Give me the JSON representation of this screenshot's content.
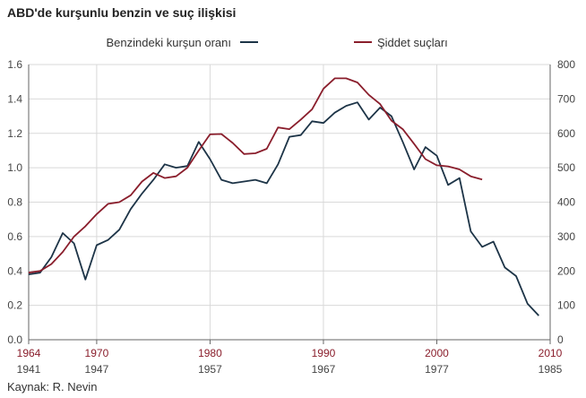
{
  "title": "ABD'de kurşunlu benzin ve suç ilişkisi",
  "source": "Kaynak: R. Nevin",
  "colors": {
    "lead": "#1d3447",
    "crime": "#8a1e2c",
    "grid": "#d9d9d9",
    "axis": "#666666"
  },
  "chart_data": {
    "type": "line",
    "legend_position": "top",
    "grid": true,
    "x_axes": {
      "crime_years": {
        "range": [
          1964,
          2010
        ],
        "ticks": [
          "1964",
          "1970",
          "1980",
          "1990",
          "2000",
          "2010"
        ]
      },
      "lead_years": {
        "range": [
          1941,
          1985
        ],
        "ticks": [
          "1941",
          "1947",
          "1957",
          "1967",
          "1977",
          "1985"
        ]
      }
    },
    "y_left": {
      "range": [
        0,
        1.6
      ],
      "ticks": [
        "0.0",
        "0.2",
        "0.4",
        "0.6",
        "0.8",
        "1.0",
        "1.2",
        "1.4",
        "1.6"
      ]
    },
    "y_right": {
      "range": [
        0,
        800
      ],
      "ticks": [
        "0",
        "100",
        "200",
        "300",
        "400",
        "500",
        "600",
        "700",
        "800"
      ]
    },
    "series": [
      {
        "name": "Benzindeki kurşun oranı",
        "axis": "left",
        "x": [
          1964,
          1965,
          1966,
          1967,
          1968,
          1969,
          1970,
          1971,
          1972,
          1973,
          1974,
          1975,
          1976,
          1977,
          1978,
          1979,
          1980,
          1981,
          1982,
          1983,
          1984,
          1985,
          1986,
          1987,
          1988,
          1989,
          1990,
          1991,
          1992,
          1993,
          1994,
          1995,
          1996,
          1997,
          1998,
          1999,
          2000,
          2001,
          2002,
          2003,
          2004,
          2005,
          2006,
          2007,
          2008,
          2009,
          2010
        ],
        "values": [
          0.38,
          0.39,
          0.48,
          0.62,
          0.56,
          0.35,
          0.55,
          0.58,
          0.64,
          0.76,
          0.85,
          0.93,
          1.02,
          1.0,
          1.01,
          1.15,
          1.05,
          0.93,
          0.91,
          0.92,
          0.93,
          0.91,
          1.02,
          1.18,
          1.19,
          1.27,
          1.26,
          1.32,
          1.36,
          1.38,
          1.28,
          1.35,
          1.3,
          1.15,
          0.99,
          1.12,
          1.07,
          0.9,
          0.94,
          0.63,
          0.54,
          0.57,
          0.42,
          0.37,
          0.21,
          0.14,
          null
        ]
      },
      {
        "name": "Şiddet suçları",
        "axis": "right",
        "x": [
          1964,
          1965,
          1966,
          1967,
          1968,
          1969,
          1970,
          1971,
          1972,
          1973,
          1974,
          1975,
          1976,
          1977,
          1978,
          1979,
          1980,
          1981,
          1982,
          1983,
          1984,
          1985,
          1986,
          1987,
          1988,
          1989,
          1990,
          1991,
          1992,
          1993,
          1994,
          1995,
          1996,
          1997,
          1998,
          1999,
          2000,
          2001,
          2002,
          2003,
          2004,
          2005
        ],
        "values": [
          195,
          200,
          220,
          255,
          300,
          330,
          365,
          395,
          400,
          420,
          460,
          485,
          470,
          475,
          500,
          550,
          597,
          598,
          572,
          540,
          542,
          555,
          617,
          612,
          640,
          670,
          730,
          760,
          760,
          748,
          712,
          685,
          637,
          612,
          569,
          525,
          507,
          504,
          495,
          475,
          466,
          null
        ]
      }
    ]
  }
}
